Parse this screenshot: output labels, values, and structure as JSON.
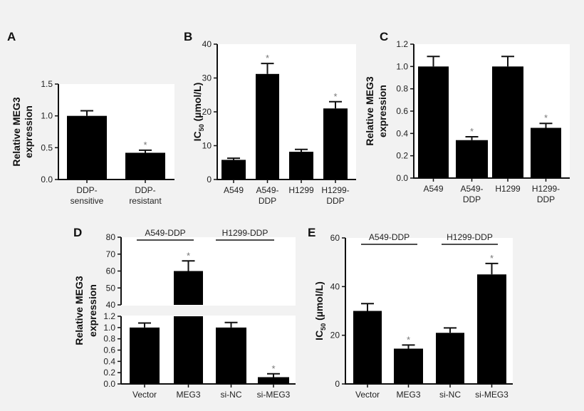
{
  "chart_data": [
    {
      "panel": "A",
      "type": "bar",
      "ylabel": [
        "Relative MEG3",
        "expression"
      ],
      "ylim": [
        0,
        1.5
      ],
      "yticks": [
        "0.0",
        "0.5",
        "1.0",
        "1.5"
      ],
      "categories": [
        [
          "DDP-",
          "sensitive"
        ],
        [
          "DDP-",
          "resistant"
        ]
      ],
      "values": [
        1.0,
        0.42
      ],
      "errors": [
        1.08,
        0.46
      ],
      "significant": [
        false,
        true
      ]
    },
    {
      "panel": "B",
      "type": "bar",
      "ylabel": [
        "IC50 (µmol/L)"
      ],
      "ylim": [
        0,
        40
      ],
      "yticks": [
        "0",
        "10",
        "20",
        "30",
        "40"
      ],
      "categories": [
        [
          "A549"
        ],
        [
          "A549-",
          "DDP"
        ],
        [
          "H1299"
        ],
        [
          "H1299-",
          "DDP"
        ]
      ],
      "values": [
        5.8,
        31.2,
        8.2,
        21.0
      ],
      "errors": [
        6.3,
        34.3,
        8.9,
        23.0
      ],
      "significant": [
        false,
        true,
        false,
        true
      ]
    },
    {
      "panel": "C",
      "type": "bar",
      "ylabel": [
        "Relative MEG3",
        "expression"
      ],
      "ylim": [
        0,
        1.2
      ],
      "yticks": [
        "0.0",
        "0.2",
        "0.4",
        "0.6",
        "0.8",
        "1.0",
        "1.2"
      ],
      "categories": [
        [
          "A549"
        ],
        [
          "A549-",
          "DDP"
        ],
        [
          "H1299"
        ],
        [
          "H1299-",
          "DDP"
        ]
      ],
      "values": [
        1.0,
        0.34,
        1.0,
        0.45
      ],
      "errors": [
        1.09,
        0.37,
        1.09,
        0.49
      ],
      "significant": [
        false,
        true,
        false,
        true
      ]
    },
    {
      "panel": "D",
      "type": "bar",
      "ylabel": [
        "Relative MEG3",
        "expression"
      ],
      "ylim": [
        0,
        80
      ],
      "axis_break": [
        1.2,
        40
      ],
      "yticks_lower": [
        "0.0",
        "0.2",
        "0.4",
        "0.6",
        "0.8",
        "1.0",
        "1.2"
      ],
      "yticks_upper": [
        "40",
        "50",
        "60",
        "70",
        "80"
      ],
      "categories": [
        [
          "Vector"
        ],
        [
          "MEG3"
        ],
        [
          "si-NC"
        ],
        [
          "si-MEG3"
        ]
      ],
      "values": [
        1.0,
        60,
        1.0,
        0.12
      ],
      "errors": [
        1.08,
        66,
        1.09,
        0.18
      ],
      "significant": [
        false,
        true,
        false,
        true
      ],
      "groups": [
        "A549-DDP",
        "H1299-DDP"
      ]
    },
    {
      "panel": "E",
      "type": "bar",
      "ylabel": [
        "IC50 (µmol/L)"
      ],
      "ylim": [
        0,
        60
      ],
      "yticks": [
        "0",
        "20",
        "40",
        "60"
      ],
      "categories": [
        [
          "Vector"
        ],
        [
          "MEG3"
        ],
        [
          "si-NC"
        ],
        [
          "si-MEG3"
        ]
      ],
      "values": [
        30,
        14.5,
        21,
        45
      ],
      "errors": [
        33,
        16,
        23,
        49.5
      ],
      "significant": [
        false,
        true,
        false,
        true
      ],
      "groups": [
        "A549-DDP",
        "H1299-DDP"
      ]
    }
  ],
  "significance_mark": "*"
}
